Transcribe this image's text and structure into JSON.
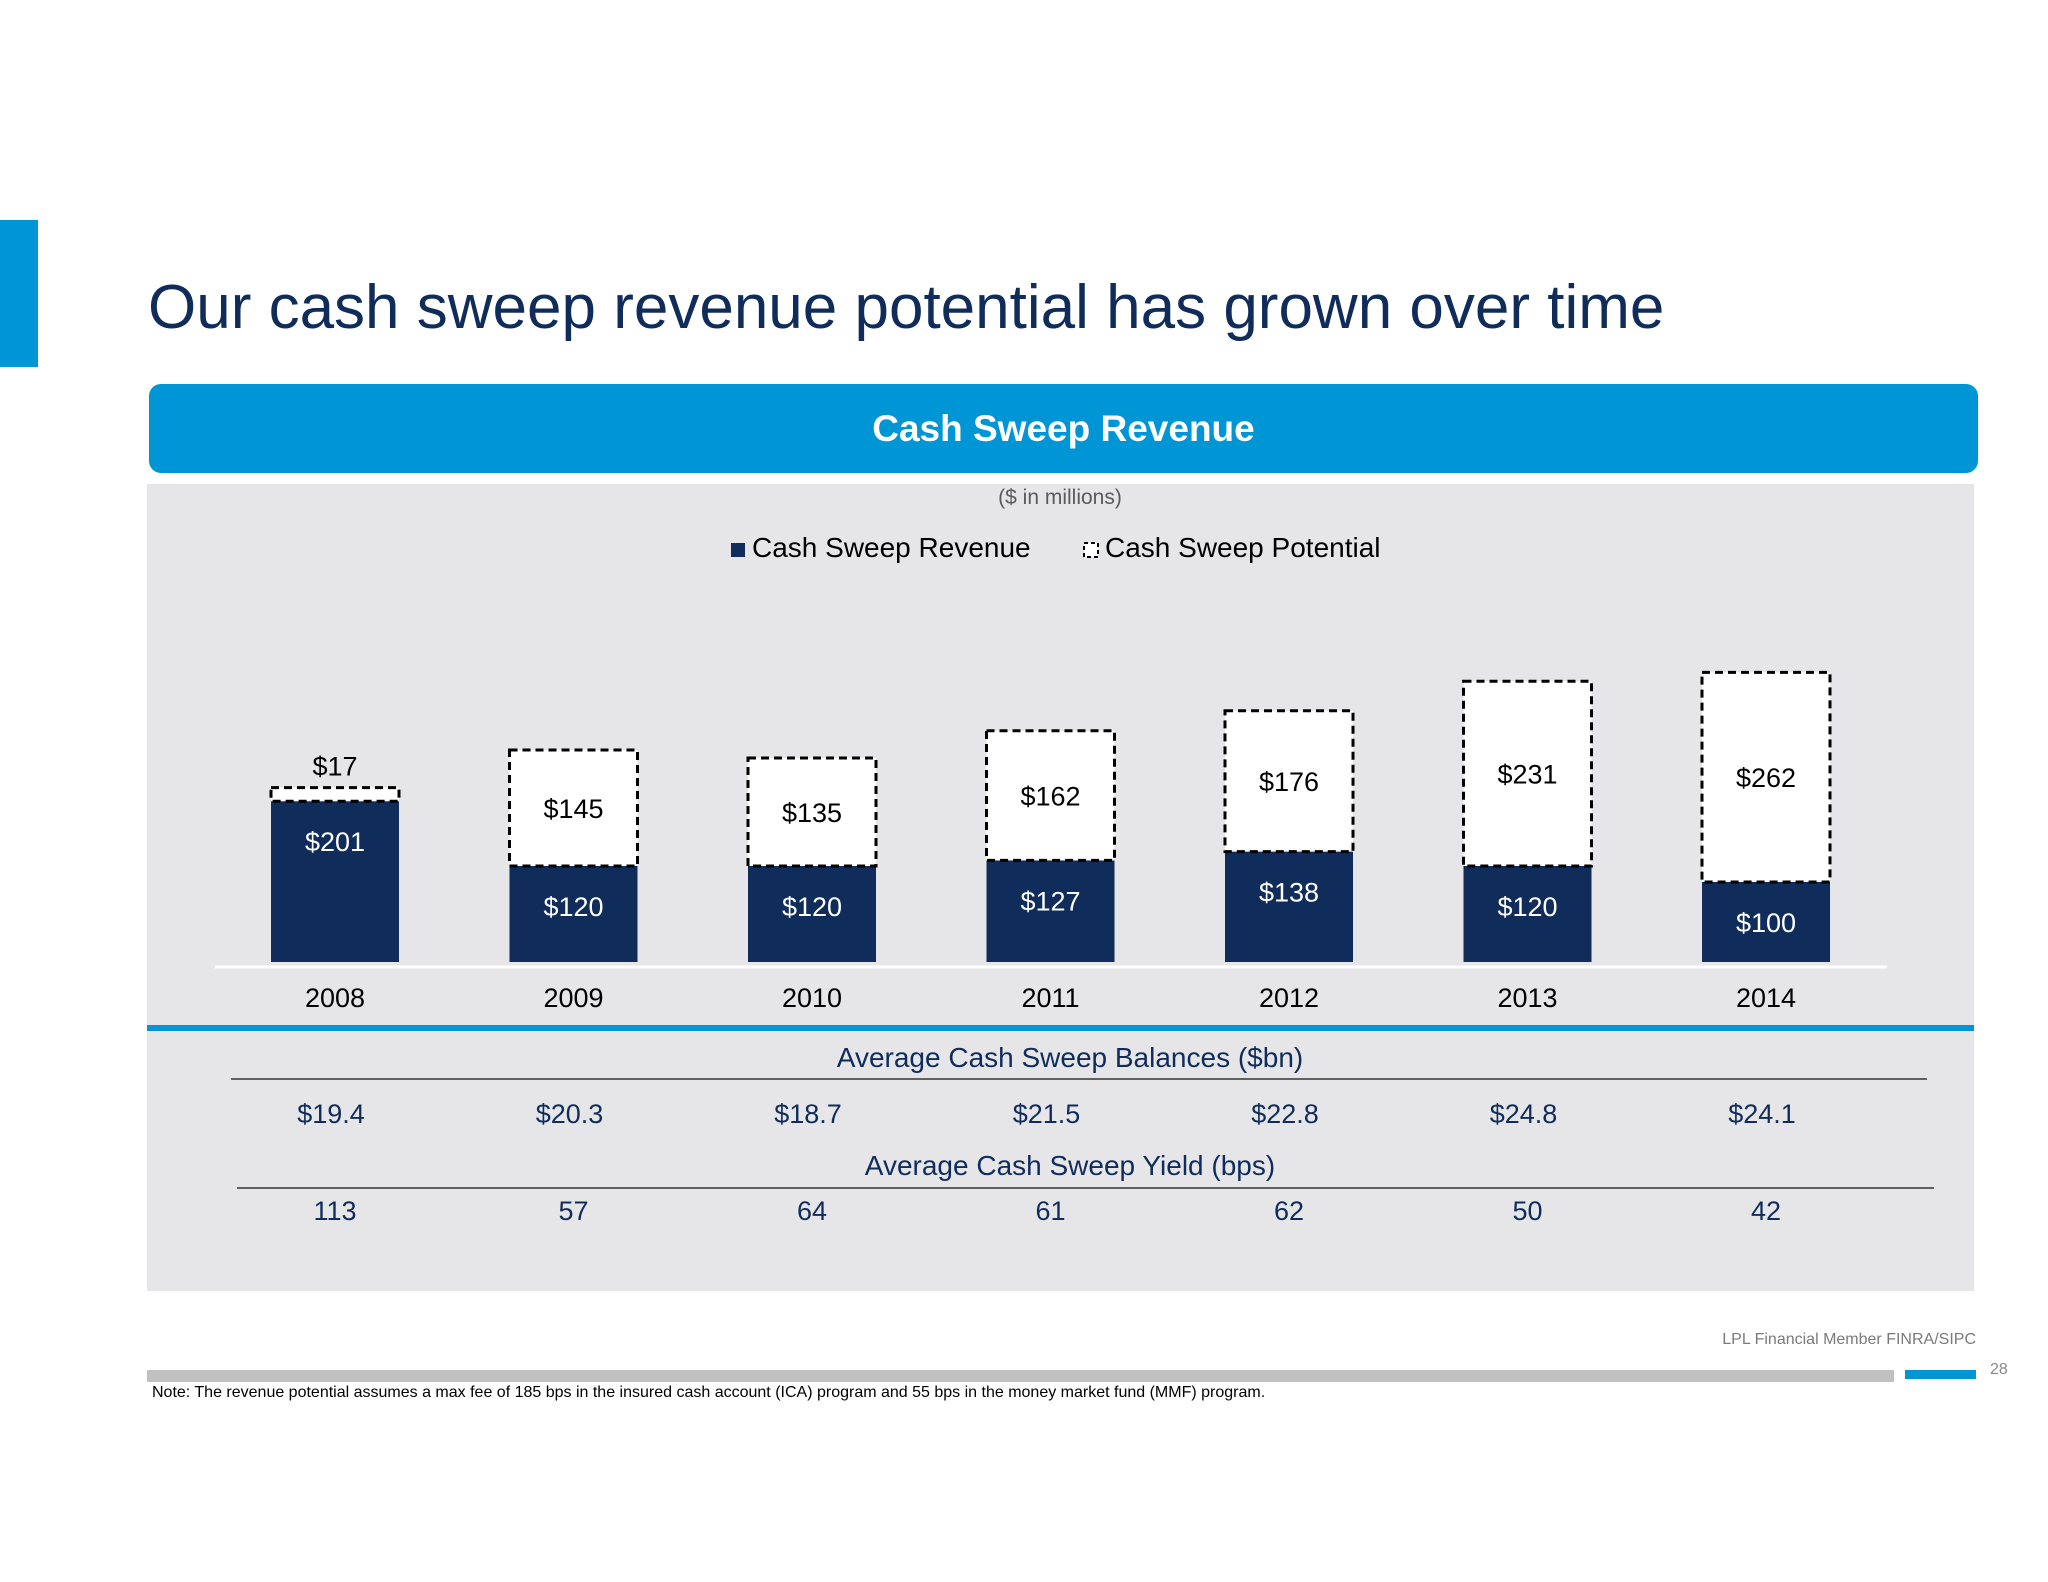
{
  "slide": {
    "title": "Our cash sweep revenue potential has grown over time",
    "banner_title": "Cash Sweep Revenue",
    "footer_brand": "LPL Financial  Member FINRA/SIPC",
    "page_number": "28",
    "note": "Note: The revenue potential assumes a max fee of 185 bps in the insured cash account (ICA) program and 55 bps in the money market fund (MMF) program."
  },
  "colors": {
    "navy": "#0f2c5a",
    "accent_blue": "#0096d6",
    "panel_gray": "#e6e6e8"
  },
  "chart_data": {
    "type": "bar",
    "stacked": true,
    "subtitle": "($ in millions)",
    "categories": [
      "2008",
      "2009",
      "2010",
      "2011",
      "2012",
      "2013",
      "2014"
    ],
    "series": [
      {
        "name": "Cash Sweep Revenue",
        "values": [
          201,
          120,
          120,
          127,
          138,
          120,
          100
        ],
        "labels": [
          "$201",
          "$120",
          "$120",
          "$127",
          "$138",
          "$120",
          "$100"
        ],
        "color": "#0f2c5a",
        "style": "solid"
      },
      {
        "name": "Cash Sweep Potential",
        "values": [
          17,
          145,
          135,
          162,
          176,
          231,
          262
        ],
        "labels": [
          "$17",
          "$145",
          "$135",
          "$162",
          "$176",
          "$231",
          "$262"
        ],
        "color": "#ffffff",
        "style": "dashed-outline"
      }
    ],
    "legend_position": "top-center",
    "ylim": [
      0,
      450
    ],
    "grid": false
  },
  "table": {
    "balances_title": "Average Cash Sweep Balances ($bn)",
    "balances": [
      "$19.4",
      "$20.3",
      "$18.7",
      "$21.5",
      "$22.8",
      "$24.8",
      "$24.1"
    ],
    "yield_title": "Average Cash Sweep Yield (bps)",
    "yields": [
      "113",
      "57",
      "64",
      "61",
      "62",
      "50",
      "42"
    ]
  }
}
